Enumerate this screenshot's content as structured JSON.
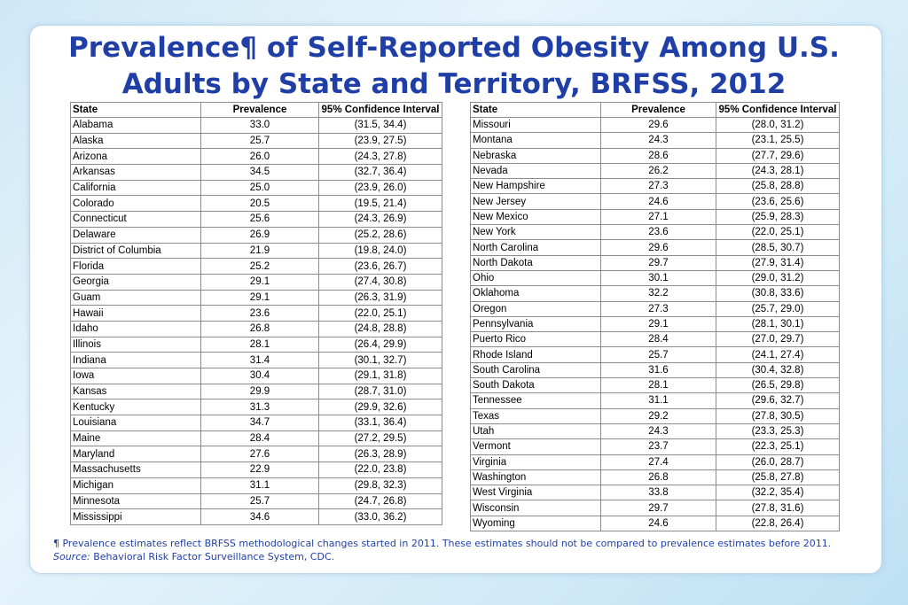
{
  "title": {
    "line1": "Prevalence¶ of Self-Reported Obesity Among U.S.",
    "line2": "Adults by State and Territory, BRFSS, 2012"
  },
  "table_headers": {
    "state": "State",
    "prevalence": "Prevalence",
    "ci": "95% Confidence Interval"
  },
  "left_rows": [
    {
      "state": "Alabama",
      "prevalence": "33.0",
      "ci": "(31.5, 34.4)"
    },
    {
      "state": "Alaska",
      "prevalence": "25.7",
      "ci": "(23.9, 27.5)"
    },
    {
      "state": "Arizona",
      "prevalence": "26.0",
      "ci": "(24.3, 27.8)"
    },
    {
      "state": "Arkansas",
      "prevalence": "34.5",
      "ci": "(32.7, 36.4)"
    },
    {
      "state": "California",
      "prevalence": "25.0",
      "ci": "(23.9, 26.0)"
    },
    {
      "state": "Colorado",
      "prevalence": "20.5",
      "ci": "(19.5, 21.4)"
    },
    {
      "state": "Connecticut",
      "prevalence": "25.6",
      "ci": "(24.3, 26.9)"
    },
    {
      "state": "Delaware",
      "prevalence": "26.9",
      "ci": "(25.2, 28.6)"
    },
    {
      "state": "District of Columbia",
      "prevalence": "21.9",
      "ci": "(19.8, 24.0)"
    },
    {
      "state": "Florida",
      "prevalence": "25.2",
      "ci": "(23.6, 26.7)"
    },
    {
      "state": "Georgia",
      "prevalence": "29.1",
      "ci": "(27.4, 30.8)"
    },
    {
      "state": "Guam",
      "prevalence": "29.1",
      "ci": "(26.3, 31.9)"
    },
    {
      "state": "Hawaii",
      "prevalence": "23.6",
      "ci": "(22.0, 25.1)"
    },
    {
      "state": "Idaho",
      "prevalence": "26.8",
      "ci": "(24.8, 28.8)"
    },
    {
      "state": "Illinois",
      "prevalence": "28.1",
      "ci": "(26.4, 29.9)"
    },
    {
      "state": "Indiana",
      "prevalence": "31.4",
      "ci": "(30.1, 32.7)"
    },
    {
      "state": "Iowa",
      "prevalence": "30.4",
      "ci": "(29.1, 31.8)"
    },
    {
      "state": "Kansas",
      "prevalence": "29.9",
      "ci": "(28.7, 31.0)"
    },
    {
      "state": "Kentucky",
      "prevalence": "31.3",
      "ci": "(29.9, 32.6)"
    },
    {
      "state": "Louisiana",
      "prevalence": "34.7",
      "ci": "(33.1, 36.4)"
    },
    {
      "state": "Maine",
      "prevalence": "28.4",
      "ci": "(27.2, 29.5)"
    },
    {
      "state": "Maryland",
      "prevalence": "27.6",
      "ci": "(26.3, 28.9)"
    },
    {
      "state": "Massachusetts",
      "prevalence": "22.9",
      "ci": "(22.0, 23.8)"
    },
    {
      "state": "Michigan",
      "prevalence": "31.1",
      "ci": "(29.8, 32.3)"
    },
    {
      "state": "Minnesota",
      "prevalence": "25.7",
      "ci": "(24.7, 26.8)"
    },
    {
      "state": "Mississippi",
      "prevalence": "34.6",
      "ci": "(33.0, 36.2)"
    }
  ],
  "right_rows": [
    {
      "state": "Missouri",
      "prevalence": "29.6",
      "ci": "(28.0, 31.2)"
    },
    {
      "state": "Montana",
      "prevalence": "24.3",
      "ci": "(23.1, 25.5)"
    },
    {
      "state": "Nebraska",
      "prevalence": "28.6",
      "ci": "(27.7, 29.6)"
    },
    {
      "state": "Nevada",
      "prevalence": "26.2",
      "ci": "(24.3, 28.1)"
    },
    {
      "state": "New Hampshire",
      "prevalence": "27.3",
      "ci": "(25.8, 28.8)"
    },
    {
      "state": "New Jersey",
      "prevalence": "24.6",
      "ci": "(23.6, 25.6)"
    },
    {
      "state": "New Mexico",
      "prevalence": "27.1",
      "ci": "(25.9, 28.3)"
    },
    {
      "state": "New York",
      "prevalence": "23.6",
      "ci": "(22.0, 25.1)"
    },
    {
      "state": "North Carolina",
      "prevalence": "29.6",
      "ci": "(28.5, 30.7)"
    },
    {
      "state": "North Dakota",
      "prevalence": "29.7",
      "ci": "(27.9, 31.4)"
    },
    {
      "state": "Ohio",
      "prevalence": "30.1",
      "ci": "(29.0, 31.2)"
    },
    {
      "state": "Oklahoma",
      "prevalence": "32.2",
      "ci": "(30.8, 33.6)"
    },
    {
      "state": "Oregon",
      "prevalence": "27.3",
      "ci": "(25.7, 29.0)"
    },
    {
      "state": "Pennsylvania",
      "prevalence": "29.1",
      "ci": "(28.1, 30.1)"
    },
    {
      "state": "Puerto Rico",
      "prevalence": "28.4",
      "ci": "(27.0, 29.7)"
    },
    {
      "state": "Rhode Island",
      "prevalence": "25.7",
      "ci": "(24.1, 27.4)"
    },
    {
      "state": "South Carolina",
      "prevalence": "31.6",
      "ci": "(30.4, 32.8)"
    },
    {
      "state": "South Dakota",
      "prevalence": "28.1",
      "ci": "(26.5, 29.8)"
    },
    {
      "state": "Tennessee",
      "prevalence": "31.1",
      "ci": "(29.6, 32.7)"
    },
    {
      "state": "Texas",
      "prevalence": "29.2",
      "ci": "(27.8, 30.5)"
    },
    {
      "state": "Utah",
      "prevalence": "24.3",
      "ci": "(23.3, 25.3)"
    },
    {
      "state": "Vermont",
      "prevalence": "23.7",
      "ci": "(22.3, 25.1)"
    },
    {
      "state": "Virginia",
      "prevalence": "27.4",
      "ci": "(26.0, 28.7)"
    },
    {
      "state": "Washington",
      "prevalence": "26.8",
      "ci": "(25.8, 27.8)"
    },
    {
      "state": "West Virginia",
      "prevalence": "33.8",
      "ci": "(32.2, 35.4)"
    },
    {
      "state": "Wisconsin",
      "prevalence": "29.7",
      "ci": "(27.8, 31.6)"
    },
    {
      "state": "Wyoming",
      "prevalence": "24.6",
      "ci": "(22.8, 26.4)"
    }
  ],
  "footnote": {
    "note": "¶ Prevalence estimates reflect BRFSS methodological changes started in 2011. These estimates should not be compared to prevalence estimates before 2011.",
    "source_label": "Source:",
    "source_text": "Behavioral Risk Factor Surveillance System, CDC."
  },
  "colors": {
    "title": "#1f3fa6",
    "panel_border": "#b9d8ea",
    "background": "#cfe8f6"
  }
}
